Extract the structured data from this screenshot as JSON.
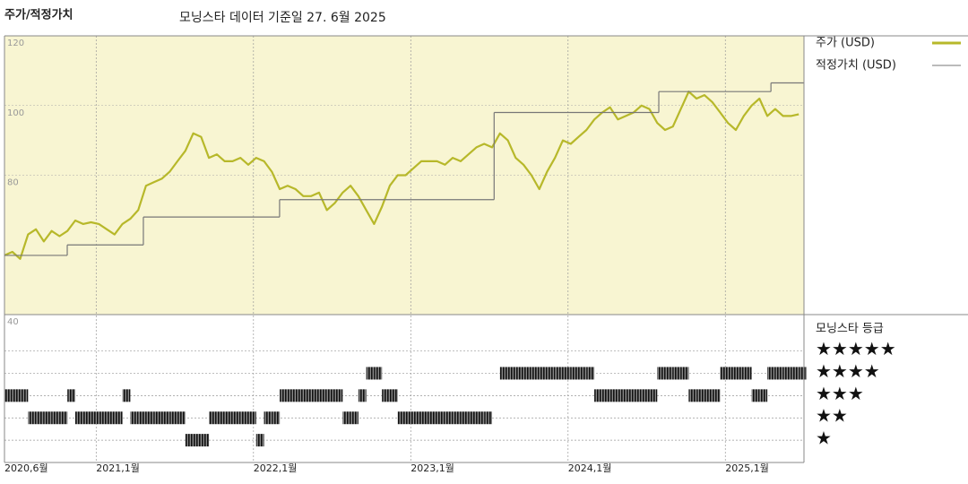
{
  "chart_data": [
    {
      "type": "line",
      "title": "주가/적정가치",
      "subtitle": "모닝스타 데이터 기준일 27. 6월 2025",
      "xlim": [
        2020.417,
        2025.5
      ],
      "xticks": [
        {
          "value": 2020.417,
          "label": "2020,6월"
        },
        {
          "value": 2021,
          "label": "2021,1월"
        },
        {
          "value": 2022,
          "label": "2022,1월"
        },
        {
          "value": 2023,
          "label": "2023,1월"
        },
        {
          "value": 2024,
          "label": "2024,1월"
        },
        {
          "value": 2025,
          "label": "2025,1월"
        }
      ],
      "ylim": [
        40,
        120
      ],
      "yticks": [
        40,
        80,
        100,
        120
      ],
      "grid": true,
      "background": "#f8f5d2",
      "series": [
        {
          "name": "주가 (USD)",
          "color": "#b7b82a",
          "style": "line",
          "x": [
            2020.417,
            2020.467,
            2020.517,
            2020.567,
            2020.617,
            2020.667,
            2020.717,
            2020.767,
            2020.817,
            2020.867,
            2020.917,
            2020.967,
            2021.017,
            2021.067,
            2021.117,
            2021.167,
            2021.217,
            2021.267,
            2021.317,
            2021.367,
            2021.417,
            2021.467,
            2021.517,
            2021.567,
            2021.617,
            2021.667,
            2021.717,
            2021.767,
            2021.817,
            2021.867,
            2021.917,
            2021.967,
            2022.017,
            2022.067,
            2022.117,
            2022.167,
            2022.217,
            2022.267,
            2022.317,
            2022.367,
            2022.417,
            2022.467,
            2022.517,
            2022.567,
            2022.617,
            2022.667,
            2022.717,
            2022.767,
            2022.817,
            2022.867,
            2022.917,
            2022.967,
            2023.017,
            2023.067,
            2023.117,
            2023.167,
            2023.217,
            2023.267,
            2023.317,
            2023.367,
            2023.417,
            2023.467,
            2023.517,
            2023.567,
            2023.617,
            2023.667,
            2023.717,
            2023.767,
            2023.817,
            2023.867,
            2023.917,
            2023.967,
            2024.017,
            2024.067,
            2024.117,
            2024.167,
            2024.217,
            2024.267,
            2024.317,
            2024.367,
            2024.417,
            2024.467,
            2024.517,
            2024.567,
            2024.617,
            2024.667,
            2024.717,
            2024.767,
            2024.817,
            2024.867,
            2024.917,
            2024.967,
            2025.017,
            2025.067,
            2025.117,
            2025.167,
            2025.217,
            2025.267,
            2025.317,
            2025.367,
            2025.417,
            2025.467
          ],
          "values": [
            57,
            58,
            56,
            63,
            64.5,
            61,
            64,
            62.5,
            64,
            67,
            66,
            66.5,
            66,
            64.5,
            63,
            66,
            67.5,
            70,
            77,
            78,
            79,
            81,
            84,
            87,
            92,
            91,
            85,
            86,
            84,
            84,
            85,
            83,
            85,
            84,
            81,
            76,
            77,
            76,
            74,
            74,
            75,
            70,
            72,
            75,
            77,
            74,
            70,
            66,
            71,
            77,
            80,
            80,
            82,
            84,
            84,
            84,
            83,
            85,
            84,
            86,
            88,
            89,
            88,
            92,
            90,
            85,
            83,
            80,
            76,
            81,
            85,
            90,
            89,
            91,
            93,
            96,
            98,
            99.5,
            96,
            97,
            98,
            100,
            99,
            95,
            93,
            94,
            99,
            104,
            102,
            103,
            101,
            98,
            95,
            93,
            97,
            100,
            102,
            97,
            99,
            97,
            97,
            97.5
          ]
        },
        {
          "name": "적정가치 (USD)",
          "color": "#777777",
          "style": "step",
          "x": [
            2020.417,
            2020.816,
            2021.3,
            2022.166,
            2023.53,
            2024.577,
            2025.29
          ],
          "values": [
            57,
            60,
            68,
            73,
            98,
            104,
            106.5
          ]
        }
      ]
    },
    {
      "type": "rating",
      "title": "모닝스타 등급",
      "ylim": [
        0,
        6.63
      ],
      "yticks": [
        {
          "value": 5,
          "label": "★★★★★"
        },
        {
          "value": 4,
          "label": "★★★★"
        },
        {
          "value": 3,
          "label": "★★★"
        },
        {
          "value": 2,
          "label": "★★"
        },
        {
          "value": 1,
          "label": "★"
        }
      ],
      "step": 0.05,
      "x": [
        2020.417,
        2020.467,
        2020.517,
        2020.567,
        2020.617,
        2020.667,
        2020.717,
        2020.767,
        2020.817,
        2020.867,
        2020.917,
        2020.967,
        2021.017,
        2021.067,
        2021.117,
        2021.167,
        2021.217,
        2021.267,
        2021.317,
        2021.367,
        2021.417,
        2021.467,
        2021.517,
        2021.567,
        2021.617,
        2021.667,
        2021.717,
        2021.767,
        2021.817,
        2021.867,
        2021.917,
        2021.967,
        2022.017,
        2022.067,
        2022.117,
        2022.167,
        2022.217,
        2022.267,
        2022.317,
        2022.367,
        2022.417,
        2022.467,
        2022.517,
        2022.567,
        2022.617,
        2022.667,
        2022.717,
        2022.767,
        2022.817,
        2022.867,
        2022.917,
        2022.967,
        2023.017,
        2023.067,
        2023.117,
        2023.167,
        2023.217,
        2023.267,
        2023.317,
        2023.367,
        2023.417,
        2023.467,
        2023.517,
        2023.567,
        2023.617,
        2023.667,
        2023.717,
        2023.767,
        2023.817,
        2023.867,
        2023.917,
        2023.967,
        2024.017,
        2024.067,
        2024.117,
        2024.167,
        2024.217,
        2024.267,
        2024.317,
        2024.367,
        2024.417,
        2024.467,
        2024.517,
        2024.567,
        2024.617,
        2024.667,
        2024.717,
        2024.767,
        2024.817,
        2024.867,
        2024.917,
        2024.967,
        2025.017,
        2025.067,
        2025.117,
        2025.167,
        2025.217,
        2025.267,
        2025.317,
        2025.367,
        2025.417,
        2025.467
      ],
      "values": [
        3,
        3,
        3,
        2,
        2,
        2,
        2,
        2,
        3,
        2,
        2,
        2,
        2,
        2,
        2,
        3,
        2,
        2,
        2,
        2,
        2,
        2,
        2,
        1,
        1,
        1,
        2,
        2,
        2,
        2,
        2,
        2,
        1,
        2,
        2,
        3,
        3,
        3,
        3,
        3,
        3,
        3,
        3,
        2,
        2,
        3,
        4,
        4,
        3,
        3,
        2,
        2,
        2,
        2,
        2,
        2,
        2,
        2,
        2,
        2,
        2,
        2,
        null,
        4,
        4,
        4,
        4,
        4,
        4,
        4,
        4,
        4,
        4,
        4,
        4,
        3,
        3,
        3,
        3,
        3,
        3,
        3,
        3,
        4,
        4,
        4,
        4,
        3,
        3,
        3,
        3,
        4,
        4,
        4,
        4,
        3,
        3,
        4,
        4,
        4,
        4,
        4
      ]
    }
  ]
}
